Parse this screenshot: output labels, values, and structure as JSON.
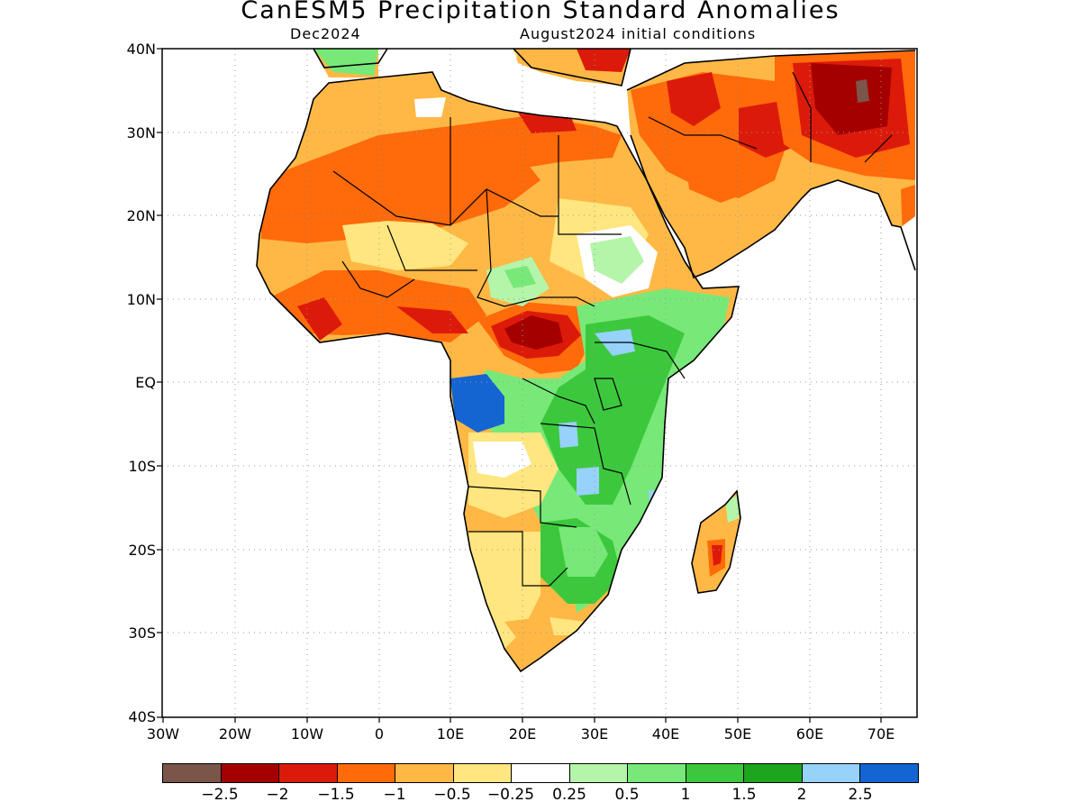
{
  "title": "CanESM5 Precipitation Standard Anomalies",
  "target_month": "Dec2024",
  "initial_conditions": "August2024 initial conditions",
  "axes": {
    "lat_labels": [
      "40N",
      "30N",
      "20N",
      "10N",
      "EQ",
      "10S",
      "20S",
      "30S",
      "40S"
    ],
    "lon_labels": [
      "30W",
      "20W",
      "10W",
      "0",
      "10E",
      "20E",
      "30E",
      "40E",
      "50E",
      "60E",
      "70E"
    ],
    "lat_range": [
      -40,
      40
    ],
    "lon_range": [
      -30,
      75
    ],
    "grid": "dotted"
  },
  "legend": {
    "colors": [
      "#7a5548",
      "#a50000",
      "#dc1a0a",
      "#ff6a0a",
      "#ffb845",
      "#ffe680",
      "#ffffff",
      "#b4f5aa",
      "#78e878",
      "#3cc83c",
      "#1ea51e",
      "#96d2fa",
      "#1464d2"
    ],
    "labels": [
      "−2.5",
      "−2",
      "−1.5",
      "−1",
      "−0.5",
      "−0.25",
      "0.25",
      "0.5",
      "1",
      "1.5",
      "2",
      "2.5"
    ]
  }
}
